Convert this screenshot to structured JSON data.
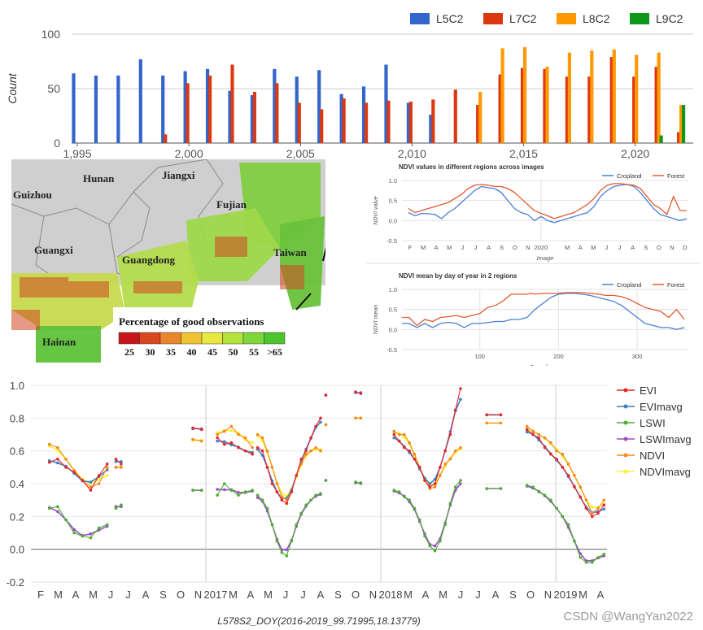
{
  "colors": {
    "L5C2": "#3366cc",
    "L7C2": "#dc3912",
    "L8C2": "#ff9900",
    "L9C2": "#109618",
    "cropland": "#4a7fd6",
    "forest": "#e35a2e",
    "EVI": "#e8262a",
    "EVImavg": "#3b7fc4",
    "LSWI": "#4caf32",
    "LSWImavg": "#9b4dc2",
    "NDVI": "#f28a1a",
    "NDVImavg": "#ffee33"
  },
  "chart_data": [
    {
      "type": "bar",
      "ylabel": "Count",
      "ylim": [
        0,
        100
      ],
      "yticks": [
        0,
        50,
        100
      ],
      "xticks": [
        "1,995",
        "2,000",
        "2,005",
        "2,010",
        "2,015",
        "2,020"
      ],
      "years": [
        1995,
        1996,
        1997,
        1998,
        1999,
        2000,
        2001,
        2002,
        2003,
        2004,
        2005,
        2006,
        2007,
        2008,
        2009,
        2010,
        2011,
        2012,
        2013,
        2014,
        2015,
        2016,
        2017,
        2018,
        2019,
        2020,
        2021,
        2022
      ],
      "series": [
        {
          "name": "L5C2",
          "values": [
            64,
            62,
            62,
            77,
            62,
            66,
            68,
            48,
            44,
            68,
            61,
            67,
            45,
            52,
            72,
            37,
            26,
            0,
            0,
            0,
            0,
            0,
            0,
            0,
            0,
            0,
            0,
            0
          ]
        },
        {
          "name": "L7C2",
          "values": [
            0,
            0,
            0,
            0,
            8,
            55,
            62,
            72,
            47,
            55,
            37,
            31,
            41,
            37,
            39,
            38,
            40,
            49,
            35,
            63,
            69,
            68,
            61,
            61,
            79,
            61,
            70,
            10
          ]
        },
        {
          "name": "L8C2",
          "values": [
            0,
            0,
            0,
            0,
            0,
            0,
            0,
            0,
            0,
            0,
            0,
            0,
            0,
            0,
            0,
            0,
            0,
            0,
            47,
            87,
            88,
            70,
            83,
            85,
            86,
            81,
            83,
            35
          ]
        },
        {
          "name": "L9C2",
          "values": [
            0,
            0,
            0,
            0,
            0,
            0,
            0,
            0,
            0,
            0,
            0,
            0,
            0,
            0,
            0,
            0,
            0,
            0,
            0,
            0,
            0,
            0,
            0,
            0,
            0,
            0,
            7,
            35
          ]
        }
      ]
    },
    {
      "type": "heatmap",
      "labels": [
        "Hunan",
        "Jiangxi",
        "Guizhou",
        "Fujian",
        "Guangxi",
        "Guangdong",
        "Taiwan",
        "Hainan"
      ],
      "legend_title": "Percentage of good observations",
      "legend_labels": [
        "25",
        "30",
        "35",
        "40",
        "45",
        "50",
        "55",
        ">65"
      ],
      "legend_colors": [
        "#c8151b",
        "#d9471e",
        "#e9852b",
        "#f1c232",
        "#e8e840",
        "#b5e33a",
        "#7fd63a",
        "#4cc52e"
      ]
    },
    {
      "type": "line",
      "title": "NDVI values in different regions across images",
      "ylabel": "NDVI value",
      "xlabel": "Image",
      "ylim": [
        -0.5,
        1.0
      ],
      "yticks": [
        "1.0",
        "0.5",
        "0.0",
        "-0.5"
      ],
      "xticks": [
        "F",
        "M",
        "A",
        "M",
        "J",
        "J",
        "A",
        "S",
        "O",
        "N",
        "2020",
        "",
        "M",
        "A",
        "M",
        "J",
        "J",
        "A",
        "S",
        "O",
        "N",
        "D"
      ],
      "series": [
        {
          "name": "Cropland",
          "values": [
            0.2,
            0.12,
            0.18,
            0.17,
            0.15,
            0.05,
            0.2,
            0.3,
            0.45,
            0.6,
            0.75,
            0.85,
            0.82,
            0.8,
            0.7,
            0.5,
            0.3,
            0.2,
            0.15,
            0.0,
            0.1,
            0.0,
            -0.05,
            0.0,
            0.05,
            0.1,
            0.15,
            0.2,
            0.35,
            0.6,
            0.75,
            0.85,
            0.88,
            0.9,
            0.85,
            0.7,
            0.5,
            0.3,
            0.15,
            0.1,
            0.05,
            0.0,
            0.05
          ]
        },
        {
          "name": "Forest",
          "values": [
            0.3,
            0.2,
            0.25,
            0.3,
            0.35,
            0.4,
            0.45,
            0.55,
            0.65,
            0.8,
            0.88,
            0.9,
            0.88,
            0.85,
            0.85,
            0.8,
            0.7,
            0.55,
            0.4,
            0.25,
            0.18,
            0.12,
            0.05,
            0.1,
            0.15,
            0.2,
            0.3,
            0.4,
            0.55,
            0.75,
            0.88,
            0.92,
            0.92,
            0.9,
            0.88,
            0.8,
            0.6,
            0.4,
            0.3,
            0.15,
            0.6,
            0.25,
            0.25
          ]
        }
      ]
    },
    {
      "type": "line",
      "title": "NDVI mean by day of year in 2 regions",
      "ylabel": "NDVI mean",
      "xlabel": "Day of year",
      "ylim": [
        -0.5,
        1.0
      ],
      "xlim": [
        1,
        365
      ],
      "yticks": [
        "1.0",
        "0.5",
        "0.0",
        "-0.5"
      ],
      "xticks": [
        "100",
        "200",
        "300"
      ],
      "series": [
        {
          "name": "Cropland",
          "x": [
            1,
            10,
            20,
            30,
            40,
            50,
            60,
            70,
            80,
            90,
            100,
            110,
            120,
            130,
            140,
            150,
            160,
            165,
            170,
            180,
            190,
            200,
            210,
            220,
            230,
            240,
            250,
            260,
            270,
            280,
            290,
            300,
            310,
            320,
            330,
            340,
            350,
            360
          ],
          "values": [
            0.15,
            0.15,
            0.05,
            0.15,
            0.05,
            0.15,
            0.18,
            0.15,
            0.05,
            0.15,
            0.15,
            0.17,
            0.2,
            0.2,
            0.25,
            0.25,
            0.3,
            0.4,
            0.5,
            0.65,
            0.8,
            0.88,
            0.9,
            0.9,
            0.88,
            0.85,
            0.8,
            0.75,
            0.7,
            0.6,
            0.45,
            0.3,
            0.15,
            0.1,
            0.05,
            0.05,
            0.0,
            0.05
          ]
        },
        {
          "name": "Forest",
          "x": [
            1,
            10,
            20,
            30,
            40,
            50,
            60,
            70,
            80,
            90,
            100,
            110,
            120,
            130,
            140,
            150,
            160,
            165,
            170,
            180,
            190,
            200,
            210,
            220,
            230,
            240,
            250,
            260,
            270,
            280,
            290,
            300,
            310,
            320,
            330,
            340,
            350,
            360
          ],
          "values": [
            0.3,
            0.3,
            0.1,
            0.25,
            0.2,
            0.3,
            0.32,
            0.35,
            0.3,
            0.35,
            0.4,
            0.55,
            0.6,
            0.72,
            0.88,
            0.88,
            0.88,
            0.9,
            0.88,
            0.9,
            0.9,
            0.9,
            0.92,
            0.92,
            0.92,
            0.9,
            0.88,
            0.85,
            0.85,
            0.82,
            0.75,
            0.65,
            0.55,
            0.5,
            0.45,
            0.3,
            0.5,
            0.25
          ]
        }
      ]
    },
    {
      "type": "scatter",
      "xlabel": "L578S2_DOY(2016-2019_99.71995,18.13779)",
      "ylim": [
        -0.2,
        1.0
      ],
      "yticks": [
        "1.0",
        "0.8",
        "0.6",
        "0.4",
        "0.2",
        "0.0",
        "-0.2"
      ],
      "xticks": [
        "F",
        "M",
        "A",
        "M",
        "J",
        "J",
        "A",
        "S",
        "O",
        "N",
        "2017",
        "M",
        "A",
        "M",
        "J",
        "J",
        "A",
        "S",
        "O",
        "N",
        "2018",
        "M",
        "A",
        "M",
        "J",
        "J",
        "A",
        "S",
        "O",
        "N",
        "2019",
        "M",
        "A"
      ],
      "series": [
        {
          "name": "EVI"
        },
        {
          "name": "EVImavg"
        },
        {
          "name": "LSWI"
        },
        {
          "name": "LSWImavg"
        },
        {
          "name": "NDVI"
        },
        {
          "name": "NDVImavg"
        }
      ],
      "segments": [
        {
          "x0": 0.5,
          "x1": 3.8,
          "EVI": [
            0.53,
            0.55,
            0.5,
            0.47,
            0.42,
            0.36,
            0.45,
            0.52
          ],
          "NDVI": [
            0.64,
            0.62,
            0.55,
            0.48,
            0.42,
            0.38,
            0.4,
            0.5
          ],
          "LSWI": [
            0.25,
            0.26,
            0.18,
            0.1,
            0.08,
            0.07,
            0.13,
            0.15
          ]
        },
        {
          "x0": 4.3,
          "x1": 4.6,
          "EVI": [
            0.55,
            0.52
          ],
          "NDVI": [
            0.5,
            0.5
          ],
          "LSWI": [
            0.25,
            0.27
          ]
        },
        {
          "x0": 8.7,
          "x1": 9.2,
          "EVI": [
            0.74,
            0.73
          ],
          "NDVI": [
            0.67,
            0.66
          ],
          "LSWI": [
            0.36,
            0.36
          ]
        },
        {
          "x0": 10.1,
          "x1": 12.1,
          "EVI": [
            0.68,
            0.64,
            0.65,
            0.62,
            0.6,
            0.58
          ],
          "NDVI": [
            0.7,
            0.72,
            0.75,
            0.7,
            0.68,
            0.62
          ],
          "LSWI": [
            0.33,
            0.4,
            0.36,
            0.33,
            0.35,
            0.36
          ]
        },
        {
          "x0": 12.4,
          "x1": 16.0,
          "EVI": [
            0.62,
            0.6,
            0.5,
            0.4,
            0.35,
            0.3,
            0.28,
            0.35,
            0.45,
            0.55,
            0.6,
            0.68,
            0.75,
            0.8
          ],
          "NDVI": [
            0.7,
            0.68,
            0.6,
            0.5,
            0.4,
            0.32,
            0.3,
            0.35,
            0.45,
            0.52,
            0.58,
            0.6,
            0.62,
            0.6
          ],
          "LSWI": [
            0.33,
            0.3,
            0.25,
            0.15,
            0.05,
            -0.02,
            -0.04,
            0.05,
            0.15,
            0.22,
            0.27,
            0.3,
            0.33,
            0.34
          ]
        },
        {
          "x0": 16.3,
          "x1": 16.4,
          "EVI": [
            0.94
          ],
          "NDVI": [
            0.76
          ],
          "LSWI": [
            0.42
          ]
        },
        {
          "x0": 18.0,
          "x1": 18.3,
          "EVI": [
            0.96,
            0.95
          ],
          "NDVI": [
            0.8,
            0.8
          ],
          "LSWI": [
            0.41,
            0.4
          ]
        },
        {
          "x0": 20.2,
          "x1": 24.0,
          "EVI": [
            0.7,
            0.66,
            0.62,
            0.6,
            0.55,
            0.5,
            0.42,
            0.38,
            0.4,
            0.5,
            0.6,
            0.7,
            0.85,
            0.98
          ],
          "NDVI": [
            0.72,
            0.7,
            0.7,
            0.65,
            0.58,
            0.5,
            0.42,
            0.37,
            0.38,
            0.45,
            0.52,
            0.55,
            0.6,
            0.62
          ],
          "LSWI": [
            0.36,
            0.35,
            0.32,
            0.3,
            0.25,
            0.18,
            0.08,
            0.02,
            -0.01,
            0.05,
            0.15,
            0.28,
            0.38,
            0.42
          ]
        },
        {
          "x0": 25.5,
          "x1": 26.3,
          "EVI": [
            0.82,
            0.82
          ],
          "NDVI": [
            0.77,
            0.77
          ],
          "LSWI": [
            0.37,
            0.37
          ]
        },
        {
          "x0": 27.8,
          "x1": 32.2,
          "EVI": [
            0.73,
            0.7,
            0.68,
            0.62,
            0.58,
            0.55,
            0.5,
            0.45,
            0.38,
            0.32,
            0.25,
            0.2,
            0.22,
            0.27
          ],
          "NDVI": [
            0.75,
            0.72,
            0.7,
            0.68,
            0.65,
            0.6,
            0.58,
            0.52,
            0.45,
            0.38,
            0.3,
            0.22,
            0.25,
            0.3
          ],
          "LSWI": [
            0.39,
            0.38,
            0.35,
            0.33,
            0.3,
            0.25,
            0.2,
            0.15,
            0.05,
            -0.05,
            -0.08,
            -0.08,
            -0.05,
            -0.03
          ]
        }
      ]
    }
  ],
  "watermark": "CSDN @WangYan2022"
}
